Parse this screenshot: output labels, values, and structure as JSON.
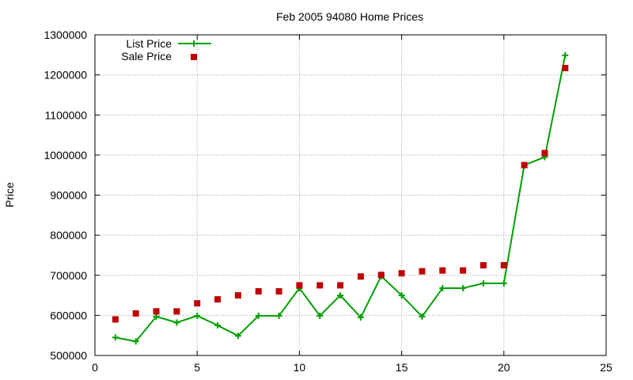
{
  "chart_data": {
    "type": "line",
    "title": "Feb 2005 94080 Home Prices",
    "xlabel": "",
    "ylabel": "Price",
    "xlim": [
      0,
      25
    ],
    "ylim": [
      500000,
      1300000
    ],
    "xticks": [
      0,
      5,
      10,
      15,
      20,
      25
    ],
    "yticks": [
      500000,
      600000,
      700000,
      800000,
      900000,
      1000000,
      1100000,
      1200000,
      1300000
    ],
    "grid": true,
    "legend_position": "top-left",
    "series": [
      {
        "name": "List Price",
        "style": "lines+points",
        "marker": "plus",
        "color": "#00a000",
        "x": [
          1,
          2,
          3,
          4,
          5,
          6,
          7,
          8,
          9,
          10,
          11,
          12,
          13,
          14,
          15,
          16,
          17,
          18,
          19,
          20,
          21,
          22,
          23
        ],
        "y": [
          545000,
          535000,
          597000,
          582000,
          599000,
          575000,
          549000,
          599000,
          599000,
          668000,
          599000,
          650000,
          595000,
          698000,
          650000,
          597000,
          668000,
          668000,
          680000,
          680000,
          975000,
          995000,
          1249000
        ]
      },
      {
        "name": "Sale Price",
        "style": "points",
        "marker": "square",
        "color": "#c00000",
        "x": [
          1,
          2,
          3,
          4,
          5,
          6,
          7,
          8,
          9,
          10,
          11,
          12,
          13,
          14,
          15,
          16,
          17,
          18,
          19,
          20,
          21,
          22,
          23
        ],
        "y": [
          590000,
          605000,
          610000,
          610000,
          630000,
          640000,
          650000,
          660000,
          660000,
          675000,
          675000,
          675000,
          697000,
          701000,
          705000,
          710000,
          712000,
          712000,
          725000,
          725000,
          975000,
          1005000,
          1217000
        ]
      }
    ]
  }
}
